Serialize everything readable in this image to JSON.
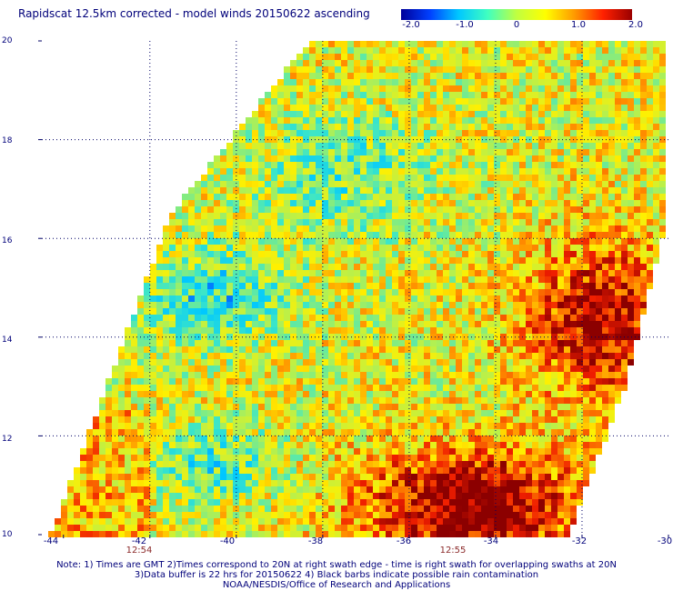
{
  "title": "Rapidscat 12.5km corrected - model winds 20150622 ascending",
  "colorbar": {
    "ticks": [
      "-2.0",
      "-1.0",
      "0",
      "1.0",
      "2.0"
    ],
    "tick_values": [
      -2.0,
      -1.0,
      0,
      1.0,
      2.0
    ],
    "colors": [
      "#00009a",
      "#0040ff",
      "#00c8ff",
      "#40ffc0",
      "#c0ff40",
      "#ffff00",
      "#ff9a00",
      "#ff2000",
      "#9a0000"
    ]
  },
  "map": {
    "lat_labels": [
      "10",
      "12",
      "14",
      "16",
      "18",
      "20"
    ],
    "lon_labels": [
      "-44",
      "-42",
      "-40",
      "-38",
      "-36",
      "-34",
      "-32",
      "-30"
    ],
    "lat_range": [
      10,
      20
    ],
    "lon_range": [
      -44.5,
      -30
    ],
    "times": [
      {
        "label": "12:54",
        "lon": -42
      },
      {
        "label": "12:55",
        "lon": -35
      }
    ],
    "swath_polygon": [
      [
        -44.3,
        10
      ],
      [
        -36.0,
        10
      ],
      [
        -32.3,
        10
      ],
      [
        -31.0,
        13.0
      ],
      [
        -30.0,
        16.5
      ],
      [
        -30.0,
        20
      ],
      [
        -38.3,
        20
      ],
      [
        -41.5,
        16.5
      ],
      [
        -43.0,
        13.0
      ]
    ]
  },
  "notes": [
    "Note: 1) Times are GMT 2)Times correspond to 20N at right swath edge - time is right swath for overlapping swaths at 20N",
    "3)Data buffer is 22 hrs for 20150622 4) Black barbs indicate possible rain contamination",
    "NOAA/NESDIS/Office of Research and Applications"
  ]
}
